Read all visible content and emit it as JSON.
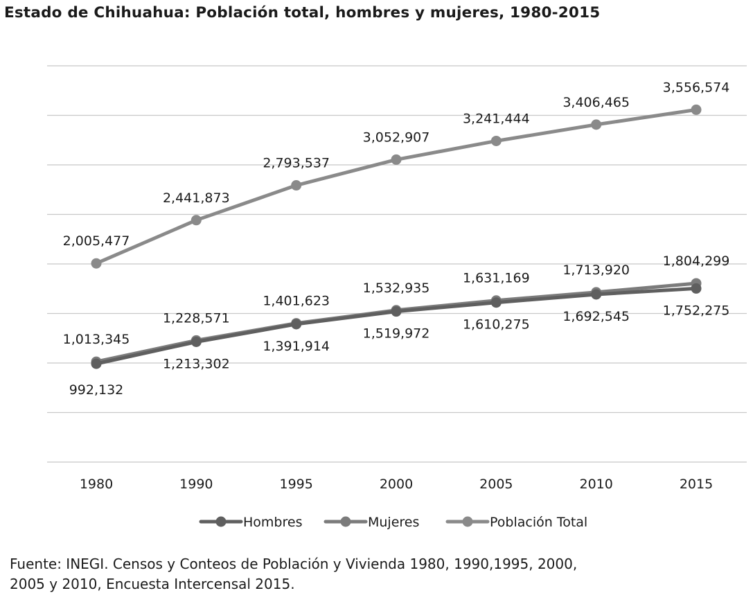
{
  "title": "Estado de Chihuahua: Población total, hombres y mujeres, 1980-2015",
  "source_lines": [
    "Fuente: INEGI. Censos y Conteos de Población y Vivienda 1980, 1990,1995, 2000,",
    "2005 y 2010, Encuesta Intercensal 2015."
  ],
  "colors": {
    "hombres": "#5f5f5f",
    "mujeres": "#7b7b7b",
    "total": "#8a8a8a",
    "grid": "#c8c8c8",
    "text": "#1a1a1a"
  },
  "chart_data": {
    "type": "line",
    "title": "Estado de Chihuahua: Población total, hombres y mujeres, 1980-2015",
    "categories": [
      "1980",
      "1990",
      "1995",
      "2000",
      "2005",
      "2010",
      "2015"
    ],
    "ylim": [
      0,
      4000000
    ],
    "grid": true,
    "legend_position": "bottom",
    "series": [
      {
        "name": "Hombres",
        "values": [
          992132,
          1213302,
          1391914,
          1519972,
          1610275,
          1692545,
          1752275
        ],
        "labels": [
          "992,132",
          "1,213,302",
          "1,391,914",
          "1,519,972",
          "1,610,275",
          "1,692,545",
          "1,752,275"
        ],
        "label_position": "below"
      },
      {
        "name": "Mujeres",
        "values": [
          1013345,
          1228571,
          1401623,
          1532935,
          1631169,
          1713920,
          1804299
        ],
        "labels": [
          "1,013,345",
          "1,228,571",
          "1,401,623",
          "1,532,935",
          "1,631,169",
          "1,713,920",
          "1,804,299"
        ],
        "label_position": "above"
      },
      {
        "name": "Población Total",
        "values": [
          2005477,
          2441873,
          2793537,
          3052907,
          3241444,
          3406465,
          3556574
        ],
        "labels": [
          "2,005,477",
          "2,441,873",
          "2,793,537",
          "3,052,907",
          "3,241,444",
          "3,406,465",
          "3,556,574"
        ],
        "label_position": "above"
      }
    ]
  }
}
